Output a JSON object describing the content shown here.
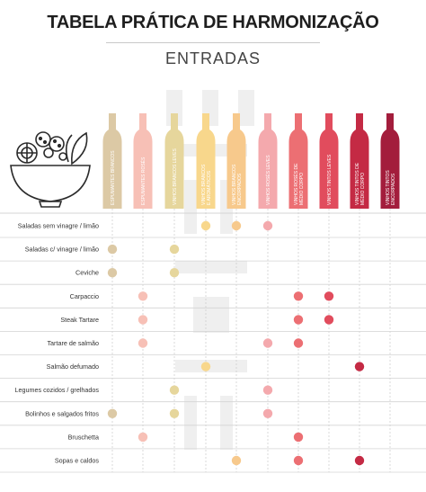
{
  "header": {
    "title": "TABELA PRÁTICA DE HARMONIZAÇÃO",
    "subtitle": "ENTRADAS"
  },
  "icon": "salad-bowl-icon",
  "colors": {
    "grid": "#d4d4d4",
    "dashed": "#cfcfcf"
  },
  "chart_data": {
    "type": "table",
    "wines": [
      {
        "name": "ESPUMANTES BRANCOS",
        "color": "#dcc9a5"
      },
      {
        "name": "ESPUMANTES ROSÉS",
        "color": "#f7c0b6"
      },
      {
        "name": "VINHOS BRANCOS LEVES",
        "color": "#e6d69c"
      },
      {
        "name": "VINHOS BRANCOS E AROMÁTICOS",
        "color": "#f8d78c"
      },
      {
        "name": "VINHOS BRANCOS ENCORPADOS",
        "color": "#f7c98c"
      },
      {
        "name": "VINHOS ROSÉS LEVES",
        "color": "#f4a9ad"
      },
      {
        "name": "VINHOS ROSÉS DE MÉDIO CORPO",
        "color": "#ec6f73"
      },
      {
        "name": "VINHOS TINTOS LEVES",
        "color": "#e14c5d"
      },
      {
        "name": "VINHOS TINTOS DE MÉDIO CORPO",
        "color": "#c42a44"
      },
      {
        "name": "VINHOS TINTOS ENCORPADOS",
        "color": "#a31d3c"
      }
    ],
    "dishes": [
      {
        "name": "Saladas sem vinagre / limão",
        "matches": [
          3,
          4,
          5
        ]
      },
      {
        "name": "Saladas c/ vinagre / limão",
        "matches": [
          0,
          2
        ]
      },
      {
        "name": "Ceviche",
        "matches": [
          0,
          2
        ]
      },
      {
        "name": "Carpaccio",
        "matches": [
          1,
          6,
          7
        ]
      },
      {
        "name": "Steak Tartare",
        "matches": [
          1,
          6,
          7
        ]
      },
      {
        "name": "Tartare de salmão",
        "matches": [
          1,
          5,
          6
        ]
      },
      {
        "name": "Salmão defumado",
        "matches": [
          3,
          8
        ]
      },
      {
        "name": "Legumes cozidos / grelhados",
        "matches": [
          2,
          5
        ]
      },
      {
        "name": "Bolinhos e salgados fritos",
        "matches": [
          0,
          2,
          5
        ]
      },
      {
        "name": "Bruschetta",
        "matches": [
          1,
          6
        ]
      },
      {
        "name": "Sopas e caldos",
        "matches": [
          4,
          6,
          8
        ]
      }
    ]
  }
}
